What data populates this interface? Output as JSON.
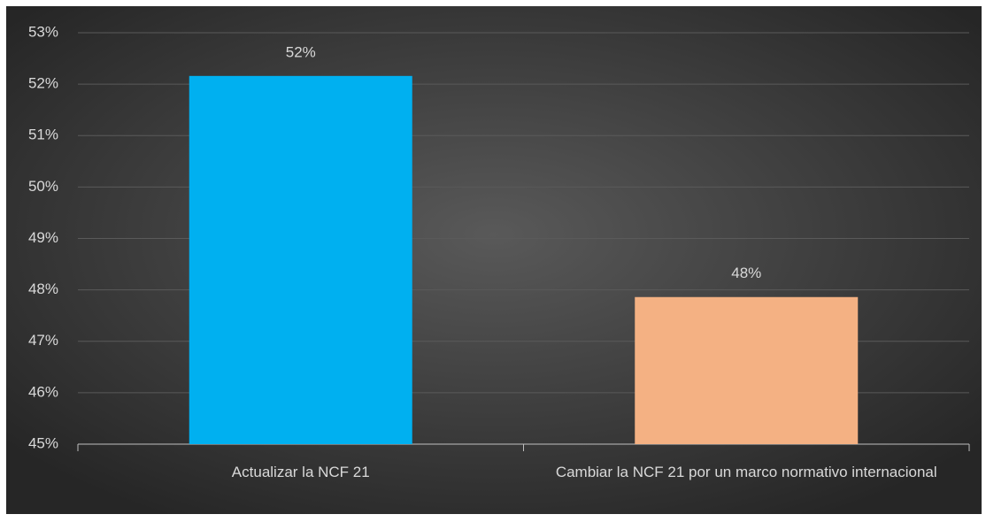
{
  "chart_data": {
    "type": "bar",
    "categories": [
      "Actualizar la NCF 21",
      "Cambiar la NCF 21 por un marco normativo internacional"
    ],
    "values": [
      52.16,
      47.86
    ],
    "value_labels": [
      "52%",
      "48%"
    ],
    "colors": [
      "#00b0f0",
      "#f4b183"
    ],
    "ylim": [
      45,
      53
    ],
    "yticks": [
      {
        "value": 45,
        "label": "45%"
      },
      {
        "value": 46,
        "label": "46%"
      },
      {
        "value": 47,
        "label": "47%"
      },
      {
        "value": 48,
        "label": "48%"
      },
      {
        "value": 49,
        "label": "49%"
      },
      {
        "value": 50,
        "label": "50%"
      },
      {
        "value": 51,
        "label": "51%"
      },
      {
        "value": 52,
        "label": "52%"
      },
      {
        "value": 53,
        "label": "53%"
      }
    ],
    "grid": true
  }
}
